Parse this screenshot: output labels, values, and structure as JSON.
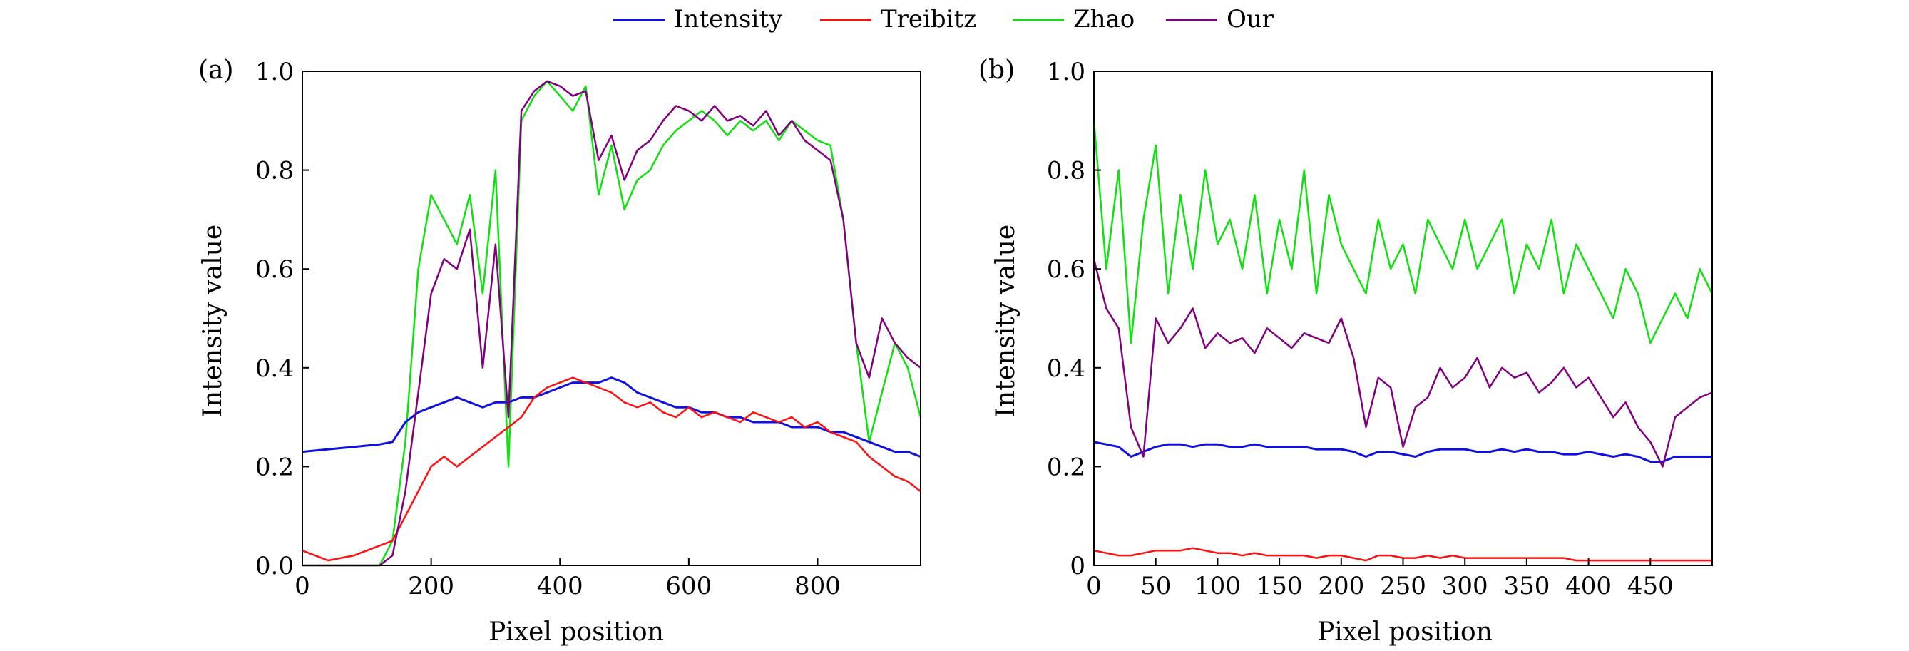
{
  "legend": {
    "placement": "top-center",
    "entries": [
      {
        "label": "Intensity",
        "color": "#1010e0"
      },
      {
        "label": "Treibitz",
        "color": "#ff1010"
      },
      {
        "label": "Zhao",
        "color": "#10e010"
      },
      {
        "label": "Our",
        "color": "#800080"
      }
    ]
  },
  "chart_data": [
    {
      "type": "line",
      "panel_label": "(a)",
      "xlabel": "Pixel position",
      "ylabel": "Intensity value",
      "xlim": [
        0,
        960
      ],
      "ylim": [
        0,
        1
      ],
      "xticks": [
        0,
        200,
        400,
        600,
        800
      ],
      "xtick_labels": [
        "0",
        "200",
        "400",
        "600",
        "800"
      ],
      "yticks": [
        0,
        0.2,
        0.4,
        0.6,
        0.8,
        1.0
      ],
      "ytick_labels": [
        "0.0",
        "0.2",
        "0.4",
        "0.6",
        "0.8",
        "1.0"
      ],
      "x": [
        0,
        40,
        80,
        120,
        140,
        160,
        180,
        200,
        220,
        240,
        260,
        280,
        300,
        320,
        340,
        360,
        380,
        400,
        420,
        440,
        460,
        480,
        500,
        520,
        540,
        560,
        580,
        600,
        620,
        640,
        660,
        680,
        700,
        720,
        740,
        760,
        780,
        800,
        820,
        840,
        860,
        880,
        900,
        920,
        940,
        960
      ],
      "series": [
        {
          "name": "Intensity",
          "values": [
            0.23,
            0.235,
            0.24,
            0.245,
            0.25,
            0.29,
            0.31,
            0.32,
            0.33,
            0.34,
            0.33,
            0.32,
            0.33,
            0.33,
            0.34,
            0.34,
            0.35,
            0.36,
            0.37,
            0.37,
            0.37,
            0.38,
            0.37,
            0.35,
            0.34,
            0.33,
            0.32,
            0.32,
            0.31,
            0.31,
            0.3,
            0.3,
            0.29,
            0.29,
            0.29,
            0.28,
            0.28,
            0.28,
            0.27,
            0.27,
            0.26,
            0.25,
            0.24,
            0.23,
            0.23,
            0.22
          ]
        },
        {
          "name": "Treibitz",
          "values": [
            0.03,
            0.01,
            0.02,
            0.04,
            0.05,
            0.1,
            0.15,
            0.2,
            0.22,
            0.2,
            0.22,
            0.24,
            0.26,
            0.28,
            0.3,
            0.34,
            0.36,
            0.37,
            0.38,
            0.37,
            0.36,
            0.35,
            0.33,
            0.32,
            0.33,
            0.31,
            0.3,
            0.32,
            0.3,
            0.31,
            0.3,
            0.29,
            0.31,
            0.3,
            0.29,
            0.3,
            0.28,
            0.29,
            0.27,
            0.26,
            0.25,
            0.22,
            0.2,
            0.18,
            0.17,
            0.15
          ]
        },
        {
          "name": "Zhao",
          "values": [
            0,
            0,
            0,
            0,
            0.05,
            0.25,
            0.6,
            0.75,
            0.7,
            0.65,
            0.75,
            0.55,
            0.8,
            0.2,
            0.9,
            0.95,
            0.98,
            0.95,
            0.92,
            0.97,
            0.75,
            0.85,
            0.72,
            0.78,
            0.8,
            0.85,
            0.88,
            0.9,
            0.92,
            0.9,
            0.87,
            0.9,
            0.88,
            0.9,
            0.86,
            0.9,
            0.88,
            0.86,
            0.85,
            0.7,
            0.45,
            0.25,
            0.35,
            0.45,
            0.4,
            0.3
          ]
        },
        {
          "name": "Our",
          "values": [
            0,
            0,
            0,
            0,
            0.02,
            0.15,
            0.35,
            0.55,
            0.62,
            0.6,
            0.68,
            0.4,
            0.65,
            0.3,
            0.92,
            0.96,
            0.98,
            0.97,
            0.95,
            0.96,
            0.82,
            0.87,
            0.78,
            0.84,
            0.86,
            0.9,
            0.93,
            0.92,
            0.9,
            0.93,
            0.9,
            0.91,
            0.89,
            0.92,
            0.87,
            0.9,
            0.86,
            0.84,
            0.82,
            0.7,
            0.45,
            0.38,
            0.5,
            0.45,
            0.42,
            0.4
          ]
        }
      ]
    },
    {
      "type": "line",
      "panel_label": "(b)",
      "xlabel": "Pixel position",
      "ylabel": "Intensity value",
      "xlim": [
        0,
        500
      ],
      "ylim": [
        0,
        1
      ],
      "xticks": [
        0,
        50,
        100,
        150,
        200,
        250,
        300,
        350,
        400,
        450
      ],
      "xtick_labels": [
        "0",
        "50",
        "100",
        "150",
        "200",
        "250",
        "300",
        "350",
        "400",
        "450"
      ],
      "yticks": [
        0,
        0.2,
        0.4,
        0.6,
        0.8,
        1.0
      ],
      "ytick_labels": [
        "0",
        "0.2",
        "0.4",
        "0.6",
        "0.8",
        "1.0"
      ],
      "x": [
        0,
        10,
        20,
        30,
        40,
        50,
        60,
        70,
        80,
        90,
        100,
        110,
        120,
        130,
        140,
        150,
        160,
        170,
        180,
        190,
        200,
        210,
        220,
        230,
        240,
        250,
        260,
        270,
        280,
        290,
        300,
        310,
        320,
        330,
        340,
        350,
        360,
        370,
        380,
        390,
        400,
        410,
        420,
        430,
        440,
        450,
        460,
        470,
        480,
        490,
        500
      ],
      "series": [
        {
          "name": "Intensity",
          "values": [
            0.25,
            0.245,
            0.24,
            0.22,
            0.23,
            0.24,
            0.245,
            0.245,
            0.24,
            0.245,
            0.245,
            0.24,
            0.24,
            0.245,
            0.24,
            0.24,
            0.24,
            0.24,
            0.235,
            0.235,
            0.235,
            0.23,
            0.22,
            0.23,
            0.23,
            0.225,
            0.22,
            0.23,
            0.235,
            0.235,
            0.235,
            0.23,
            0.23,
            0.235,
            0.23,
            0.235,
            0.23,
            0.23,
            0.225,
            0.225,
            0.23,
            0.225,
            0.22,
            0.225,
            0.22,
            0.21,
            0.21,
            0.22,
            0.22,
            0.22,
            0.22
          ]
        },
        {
          "name": "Treibitz",
          "values": [
            0.03,
            0.025,
            0.02,
            0.02,
            0.025,
            0.03,
            0.03,
            0.03,
            0.035,
            0.03,
            0.025,
            0.025,
            0.02,
            0.025,
            0.02,
            0.02,
            0.02,
            0.02,
            0.015,
            0.02,
            0.02,
            0.015,
            0.01,
            0.02,
            0.02,
            0.015,
            0.015,
            0.02,
            0.015,
            0.02,
            0.015,
            0.015,
            0.015,
            0.015,
            0.015,
            0.015,
            0.015,
            0.015,
            0.015,
            0.01,
            0.01,
            0.01,
            0.01,
            0.01,
            0.01,
            0.01,
            0.01,
            0.01,
            0.01,
            0.01,
            0.01
          ]
        },
        {
          "name": "Zhao",
          "values": [
            0.9,
            0.6,
            0.8,
            0.45,
            0.7,
            0.85,
            0.55,
            0.75,
            0.6,
            0.8,
            0.65,
            0.7,
            0.6,
            0.75,
            0.55,
            0.7,
            0.6,
            0.8,
            0.55,
            0.75,
            0.65,
            0.6,
            0.55,
            0.7,
            0.6,
            0.65,
            0.55,
            0.7,
            0.65,
            0.6,
            0.7,
            0.6,
            0.65,
            0.7,
            0.55,
            0.65,
            0.6,
            0.7,
            0.55,
            0.65,
            0.6,
            0.55,
            0.5,
            0.6,
            0.55,
            0.45,
            0.5,
            0.55,
            0.5,
            0.6,
            0.55
          ]
        },
        {
          "name": "Our",
          "values": [
            0.62,
            0.52,
            0.48,
            0.28,
            0.22,
            0.5,
            0.45,
            0.48,
            0.52,
            0.44,
            0.47,
            0.45,
            0.46,
            0.43,
            0.48,
            0.46,
            0.44,
            0.47,
            0.46,
            0.45,
            0.5,
            0.42,
            0.28,
            0.38,
            0.36,
            0.24,
            0.32,
            0.34,
            0.4,
            0.36,
            0.38,
            0.42,
            0.36,
            0.4,
            0.38,
            0.39,
            0.35,
            0.37,
            0.4,
            0.36,
            0.38,
            0.34,
            0.3,
            0.33,
            0.28,
            0.25,
            0.2,
            0.3,
            0.32,
            0.34,
            0.35
          ]
        }
      ]
    }
  ]
}
